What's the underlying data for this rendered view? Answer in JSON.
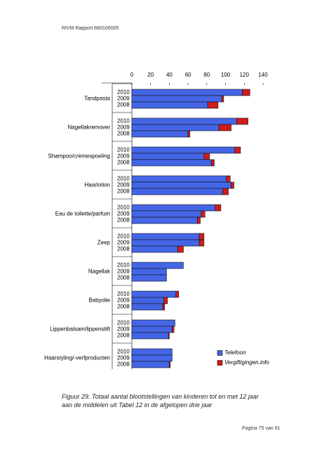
{
  "header": "RIVM Rapport 660100005",
  "chart_data": {
    "type": "bar",
    "orientation": "horizontal",
    "stacked": true,
    "categories": [
      "Tandpasta",
      "Nagellakremover",
      "Shampoo/crèmespoeling",
      "Haarlotion",
      "Eau de toilette/parfum",
      "Zeep",
      "Nagellak",
      "Babyolie",
      "Lippenbalsam/lippenstift",
      "Haarstyling/-verfproducten"
    ],
    "subcategories": [
      "2010",
      "2009",
      "2008"
    ],
    "series": [
      {
        "name": "Telefoon",
        "color": "#4466e6",
        "values": [
          [
            118,
            96,
            81
          ],
          [
            112,
            93,
            60
          ],
          [
            110,
            77,
            85
          ],
          [
            101,
            106,
            97
          ],
          [
            89,
            74,
            70
          ],
          [
            72,
            72,
            49
          ],
          [
            55,
            37,
            37
          ],
          [
            47,
            34,
            33
          ],
          [
            46,
            43,
            39
          ],
          [
            43,
            43,
            40
          ]
        ]
      },
      {
        "name": "Vergiftigingen.info",
        "color": "#d01c1c",
        "values": [
          [
            8,
            2,
            11
          ],
          [
            12,
            13,
            2
          ],
          [
            6,
            6,
            3
          ],
          [
            4,
            3,
            6
          ],
          [
            6,
            4,
            3
          ],
          [
            5,
            5,
            6
          ],
          [
            0,
            0,
            0
          ],
          [
            3,
            4,
            2
          ],
          [
            0,
            2,
            1
          ],
          [
            0,
            0,
            1
          ]
        ]
      }
    ],
    "xlim": [
      0,
      140
    ],
    "xticks": [
      0,
      20,
      40,
      60,
      80,
      100,
      120,
      140
    ],
    "legend": "bottom-right"
  },
  "caption": "Figuur 29. Totaal aantal blootstellingen van kinderen tot en met 12 jaar aan de middelen uit Tabel 12 in de afgelopen drie jaar",
  "footer": "Pagina 75 van 91"
}
